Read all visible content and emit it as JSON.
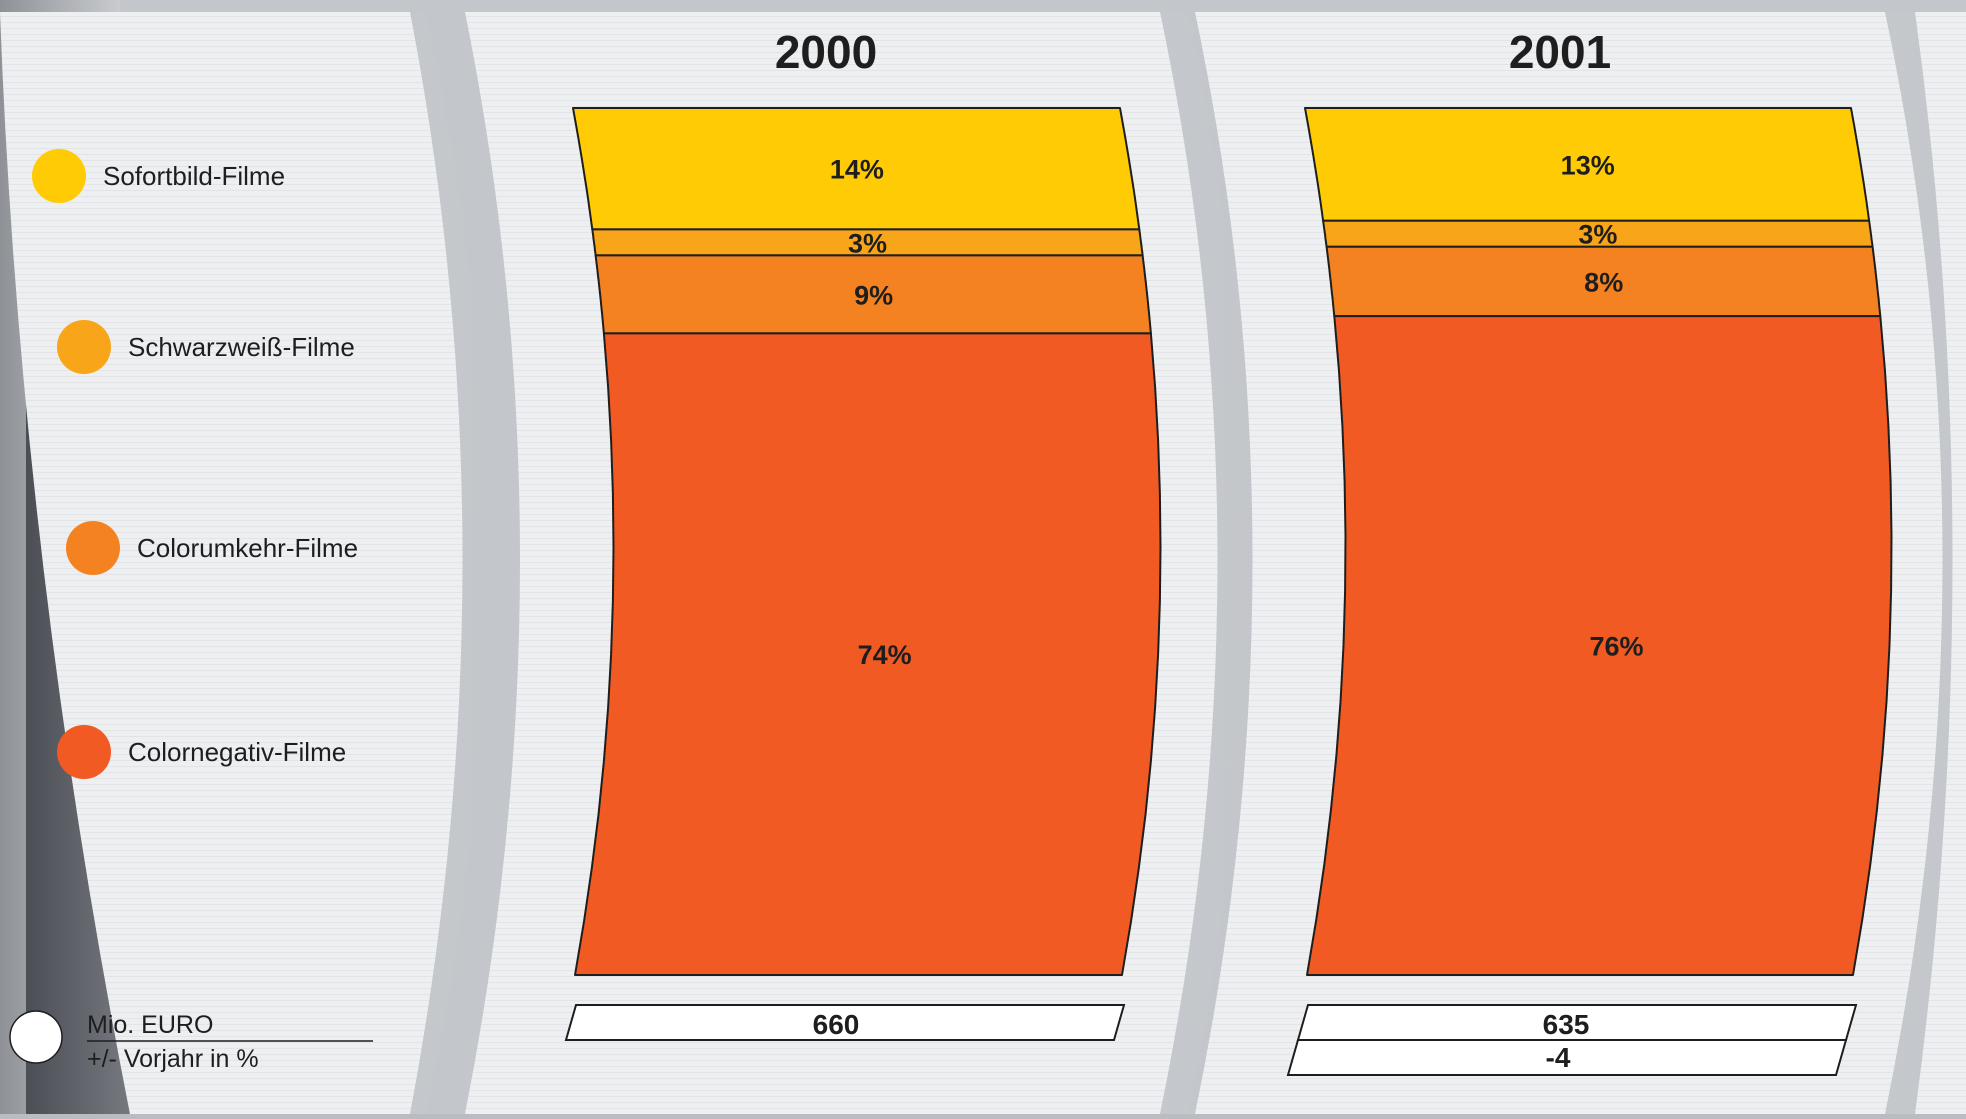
{
  "chart_data": {
    "type": "bar",
    "stacked": true,
    "categories": [
      "2000",
      "2001"
    ],
    "series": [
      {
        "name": "Sofortbild-Filme",
        "color": "#FFCB05",
        "values": [
          14,
          13
        ],
        "labels": [
          "14%",
          "13%"
        ]
      },
      {
        "name": "Schwarzweiß-Filme",
        "color": "#F9A51A",
        "values": [
          3,
          3
        ],
        "labels": [
          "3%",
          "3%"
        ]
      },
      {
        "name": "Colorumkehr-Filme",
        "color": "#F58220",
        "values": [
          9,
          8
        ],
        "labels": [
          "9%",
          "8%"
        ]
      },
      {
        "name": "Colornegativ-Filme",
        "color": "#F15A22",
        "values": [
          74,
          76
        ],
        "labels": [
          "74%",
          "76%"
        ]
      }
    ],
    "totals": {
      "unit_label": "Mio. EURO",
      "change_label": "+/- Vorjahr in %",
      "values": [
        "660",
        "635"
      ],
      "change": [
        "",
        "-4"
      ]
    },
    "ylim": [
      0,
      100
    ],
    "grid": false,
    "legend_position": "left"
  }
}
